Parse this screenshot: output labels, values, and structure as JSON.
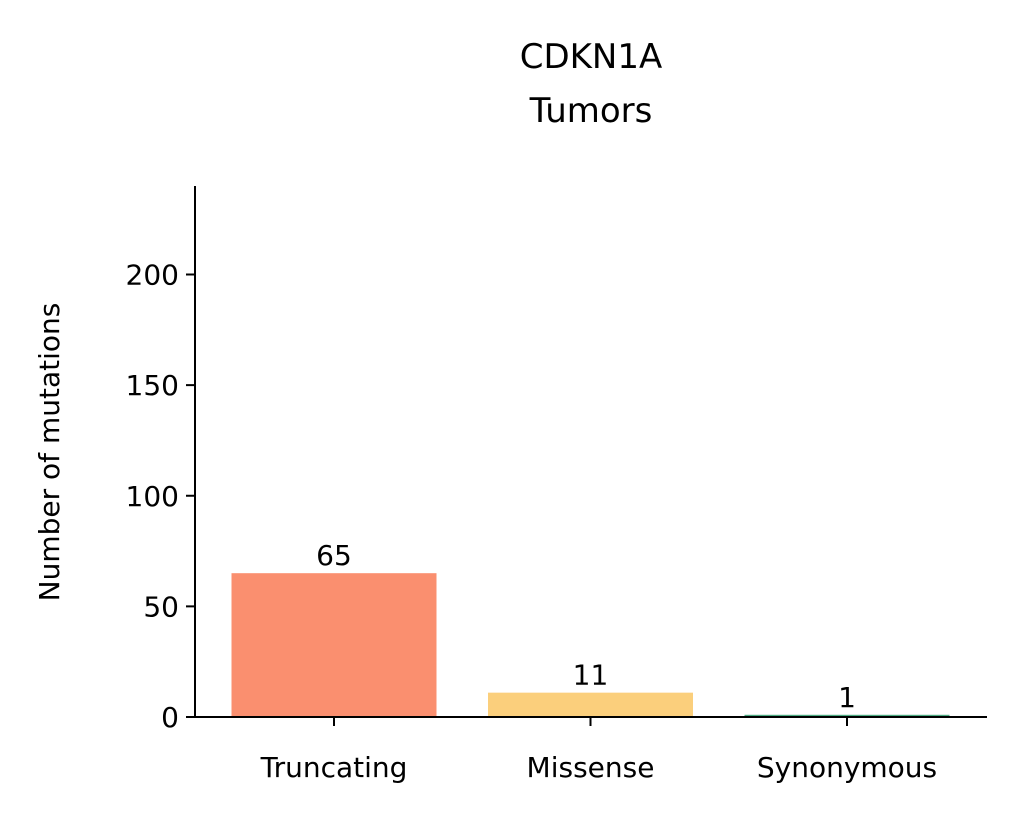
{
  "chart_data": {
    "type": "bar",
    "title": "CDKN1A",
    "subtitle": "Tumors",
    "xlabel": "",
    "ylabel": "Number of mutations",
    "categories": [
      "Truncating",
      "Missense",
      "Synonymous"
    ],
    "values": [
      65,
      11,
      1
    ],
    "data_labels": [
      "65",
      "11",
      "1"
    ],
    "colors": [
      "#fa8f6f",
      "#fbcf7c",
      "#4dab83"
    ],
    "ylim": [
      0,
      240
    ],
    "yticks": [
      0,
      50,
      100,
      150,
      200
    ],
    "ytick_labels": [
      "0",
      "50",
      "100",
      "150",
      "200"
    ],
    "grid": false,
    "legend": "none"
  }
}
